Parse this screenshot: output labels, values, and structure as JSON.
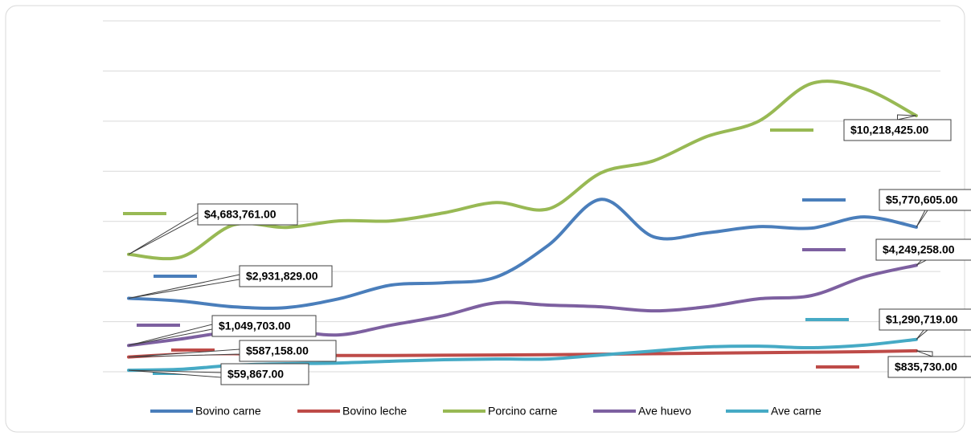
{
  "chart_data": {
    "type": "line",
    "categories": [
      null,
      null,
      null,
      null,
      null,
      null,
      null,
      null,
      null,
      null,
      null,
      null,
      null,
      null,
      null,
      null
    ],
    "ylim": [
      0,
      14000000
    ],
    "yticks": [
      0,
      2000000,
      4000000,
      6000000,
      8000000,
      10000000,
      12000000,
      14000000
    ],
    "grid": true,
    "smooth": true,
    "legend": "bottom",
    "series": [
      {
        "name": "Bovino carne",
        "color": "#4a7ebb",
        "values": [
          2931829,
          2820000,
          2590000,
          2560000,
          2910000,
          3460000,
          3550000,
          3780000,
          5060000,
          6880000,
          5380000,
          5540000,
          5790000,
          5730000,
          6180000,
          5770605
        ],
        "value_labels": [
          "$2,931,829.00",
          null,
          null,
          null,
          null,
          null,
          null,
          null,
          null,
          null,
          null,
          null,
          null,
          null,
          null,
          "$5,770,605.00"
        ]
      },
      {
        "name": "Bovino leche",
        "color": "#be4b48",
        "values": [
          587158,
          700000,
          720000,
          680000,
          650000,
          650000,
          660000,
          670000,
          680000,
          700000,
          720000,
          740000,
          760000,
          780000,
          800000,
          835730
        ],
        "value_labels": [
          "$587,158.00",
          null,
          null,
          null,
          null,
          null,
          null,
          null,
          null,
          null,
          null,
          null,
          null,
          null,
          null,
          "$835,730.00"
        ]
      },
      {
        "name": "Porcino carne",
        "color": "#98b954",
        "values": [
          4683761,
          4580000,
          5860000,
          5760000,
          6020000,
          6020000,
          6340000,
          6750000,
          6500000,
          7940000,
          8420000,
          9380000,
          10000000,
          11500000,
          11300000,
          10218425
        ],
        "value_labels": [
          "$4,683,761.00",
          null,
          null,
          null,
          null,
          null,
          null,
          null,
          null,
          null,
          null,
          null,
          null,
          null,
          null,
          "$10,218,425.00"
        ]
      },
      {
        "name": "Ave huevo",
        "color": "#7d60a0",
        "values": [
          1049703,
          1310000,
          1600000,
          1630000,
          1470000,
          1860000,
          2240000,
          2750000,
          2660000,
          2590000,
          2430000,
          2590000,
          2910000,
          3040000,
          3780000,
          4249258
        ],
        "value_labels": [
          "$1,049,703.00",
          null,
          null,
          null,
          null,
          null,
          null,
          null,
          null,
          null,
          null,
          null,
          null,
          null,
          null,
          "$4,249,258.00"
        ]
      },
      {
        "name": "Ave carne",
        "color": "#46aac5",
        "values": [
          59867,
          100000,
          260000,
          320000,
          350000,
          420000,
          480000,
          510000,
          510000,
          670000,
          830000,
          990000,
          1020000,
          960000,
          1060000,
          1290719
        ],
        "value_labels": [
          "$59,867.00",
          null,
          null,
          null,
          null,
          null,
          null,
          null,
          null,
          null,
          null,
          null,
          null,
          null,
          null,
          "$1,290,719.00"
        ]
      }
    ]
  }
}
